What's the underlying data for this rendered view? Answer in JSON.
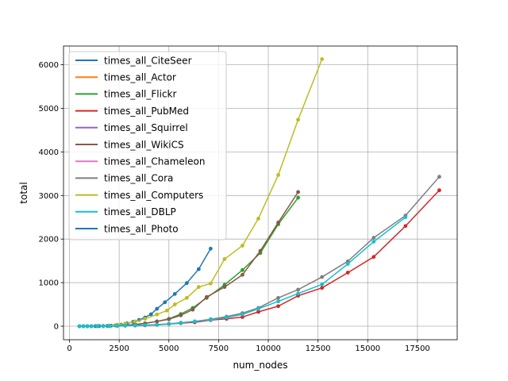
{
  "chart_data": {
    "type": "line",
    "xlabel": "num_nodes",
    "ylabel": "total",
    "xlim": [
      -300,
      19500
    ],
    "ylim": [
      -310,
      6430
    ],
    "xticks": [
      0,
      2500,
      5000,
      7500,
      10000,
      12500,
      15000,
      17500
    ],
    "yticks": [
      0,
      1000,
      2000,
      3000,
      4000,
      5000,
      6000
    ],
    "grid": true,
    "legend_position": "top-left",
    "series": [
      {
        "name": "times_all_CiteSeer",
        "color": "#1f77b4",
        "x": [
          500,
          700,
          900,
          1100,
          1300,
          1500,
          1700,
          1900,
          2100,
          2300,
          2600,
          2900,
          3200,
          3500,
          3800,
          4100,
          4400,
          4800,
          5300,
          5900,
          6500,
          7100
        ],
        "y": [
          0,
          0,
          1,
          1,
          2,
          3,
          5,
          8,
          12,
          18,
          35,
          65,
          100,
          145,
          200,
          275,
          400,
          550,
          740,
          990,
          1310,
          1780
        ]
      },
      {
        "name": "times_all_Actor",
        "color": "#ff7f0e",
        "x": [],
        "y": []
      },
      {
        "name": "times_all_Flickr",
        "color": "#2ca02c",
        "x": [
          500,
          700,
          900,
          1100,
          1400,
          1700,
          2000,
          2400,
          2800,
          3300,
          3800,
          4400,
          5000,
          5600,
          6200,
          6900,
          7800,
          8700,
          9600,
          10500,
          11500
        ],
        "y": [
          0,
          0,
          1,
          1,
          2,
          3,
          5,
          10,
          20,
          40,
          65,
          110,
          170,
          280,
          420,
          650,
          950,
          1290,
          1680,
          2340,
          2950
        ]
      },
      {
        "name": "times_all_PubMed",
        "color": "#d62728",
        "x": [
          500,
          700,
          900,
          1100,
          1400,
          1700,
          2000,
          2400,
          2800,
          3300,
          3800,
          4400,
          5000,
          5600,
          6300,
          7100,
          7900,
          8700,
          9500,
          10500,
          11500,
          12700,
          14000,
          15300,
          16900,
          18600
        ],
        "y": [
          0,
          0,
          1,
          1,
          2,
          3,
          5,
          8,
          12,
          15,
          20,
          30,
          50,
          70,
          90,
          140,
          170,
          210,
          330,
          460,
          700,
          880,
          1230,
          1590,
          2300,
          3120
        ]
      },
      {
        "name": "times_all_Squirrel",
        "color": "#9467bd",
        "x": [],
        "y": []
      },
      {
        "name": "times_all_WikiCS",
        "color": "#8c564b",
        "x": [
          500,
          700,
          900,
          1100,
          1400,
          1700,
          2000,
          2400,
          2800,
          3300,
          3800,
          4400,
          5000,
          5600,
          6200,
          6900,
          7800,
          8700,
          9600,
          10500,
          11500
        ],
        "y": [
          0,
          0,
          1,
          1,
          2,
          3,
          5,
          10,
          20,
          40,
          65,
          110,
          160,
          250,
          380,
          670,
          900,
          1180,
          1730,
          2380,
          3080
        ]
      },
      {
        "name": "times_all_Chameleon",
        "color": "#e377c2",
        "x": [],
        "y": []
      },
      {
        "name": "times_all_Cora",
        "color": "#7f7f7f",
        "x": [
          500,
          700,
          900,
          1100,
          1400,
          1700,
          2000,
          2400,
          2800,
          3300,
          3800,
          4400,
          5000,
          5600,
          6300,
          7100,
          7900,
          8700,
          9500,
          10500,
          11500,
          12700,
          14000,
          15300,
          16900,
          18600
        ],
        "y": [
          0,
          0,
          1,
          1,
          2,
          3,
          5,
          8,
          12,
          18,
          25,
          35,
          55,
          80,
          110,
          160,
          220,
          300,
          420,
          650,
          840,
          1130,
          1490,
          2030,
          2540,
          3430
        ]
      },
      {
        "name": "times_all_Computers",
        "color": "#bcbd22",
        "x": [
          500,
          700,
          900,
          1100,
          1400,
          1700,
          2000,
          2400,
          2800,
          3300,
          3800,
          4400,
          4900,
          5300,
          5900,
          6500,
          7100,
          7800,
          8700,
          9500,
          10500,
          11500,
          12700
        ],
        "y": [
          0,
          0,
          1,
          2,
          4,
          8,
          15,
          35,
          60,
          110,
          170,
          270,
          360,
          500,
          650,
          900,
          980,
          1540,
          1850,
          2470,
          3470,
          4740,
          6130
        ]
      },
      {
        "name": "times_all_DBLP",
        "color": "#17becf",
        "x": [
          500,
          700,
          900,
          1100,
          1400,
          1700,
          2000,
          2400,
          2800,
          3300,
          3800,
          4400,
          5000,
          5600,
          6300,
          7100,
          7900,
          8700,
          9500,
          10500,
          11500,
          12700,
          14000,
          15300,
          16900
        ],
        "y": [
          0,
          0,
          1,
          1,
          2,
          3,
          5,
          8,
          12,
          18,
          25,
          35,
          55,
          80,
          110,
          150,
          200,
          270,
          400,
          570,
          750,
          960,
          1430,
          1940,
          2500
        ]
      },
      {
        "name": "times_all_Photo",
        "color": "#1f77b4",
        "x": [],
        "y": []
      }
    ]
  }
}
